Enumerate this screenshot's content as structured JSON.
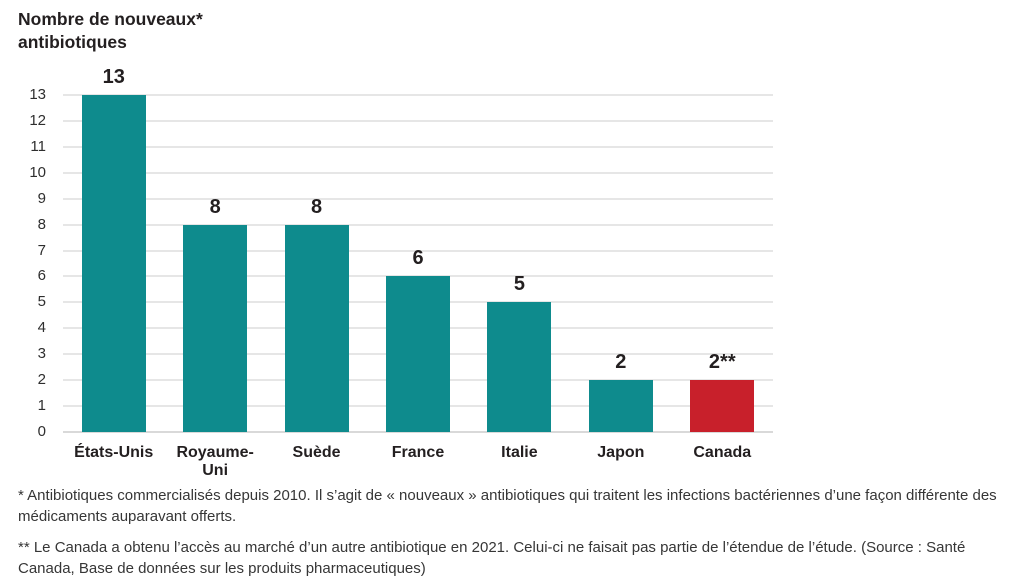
{
  "title": {
    "line1": "Nombre de nouveaux*",
    "line2": "antibiotiques"
  },
  "chart_data": {
    "type": "bar",
    "title": "Nombre de nouveaux* antibiotiques",
    "categories": [
      "États-Unis",
      "Royaume-Uni",
      "Suède",
      "France",
      "Italie",
      "Japon",
      "Canada"
    ],
    "values": [
      13,
      8,
      8,
      6,
      5,
      2,
      2
    ],
    "value_labels": [
      "13",
      "8",
      "8",
      "6",
      "5",
      "2",
      "2**"
    ],
    "bar_colors": [
      "#0e8b8d",
      "#0e8b8d",
      "#0e8b8d",
      "#0e8b8d",
      "#0e8b8d",
      "#0e8b8d",
      "#c8202b"
    ],
    "xlabel": "",
    "ylabel": "",
    "ylim": [
      0,
      13
    ],
    "yticks": [
      0,
      1,
      2,
      3,
      4,
      5,
      6,
      7,
      8,
      9,
      10,
      11,
      12,
      13
    ],
    "grid": true,
    "legend": false
  },
  "footnotes": {
    "note1": "* Antibiotiques commercialisés depuis 2010. Il s’agit de « nouveaux » antibiotiques qui traitent les infections bactériennes d’une façon différente des médicaments auparavant offerts.",
    "note2": "** Le Canada a obtenu l’accès au marché d’un autre antibiotique en 2021. Celui-ci ne faisait pas partie de l’étendue de l’étude. (Source : Santé Canada, Base de données sur les produits pharmaceutiques)"
  },
  "colors": {
    "bar_teal": "#0e8b8d",
    "bar_red": "#c8202b",
    "text_dark": "#231f20",
    "gridline": "#e6e6e6",
    "axis_text": "#2e2e2e"
  }
}
